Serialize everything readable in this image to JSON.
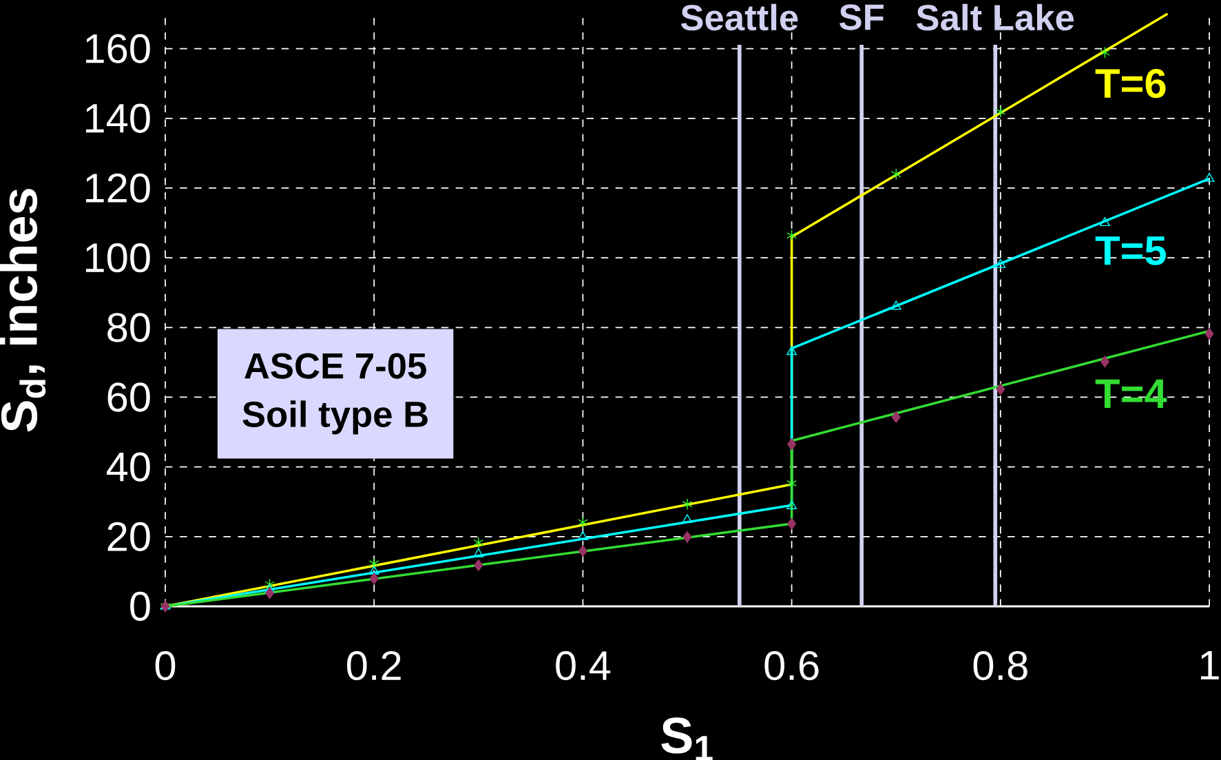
{
  "chart_data": {
    "type": "line",
    "xlabel": "S$_{1}$",
    "ylabel": "S$_{d}$, inches",
    "xlim": [
      0,
      1
    ],
    "ylim": [
      0,
      170
    ],
    "xticks": [
      0,
      0.2,
      0.4,
      0.6,
      0.8,
      1
    ],
    "yticks": [
      0,
      20,
      40,
      60,
      80,
      100,
      120,
      140,
      160
    ],
    "grid": true,
    "annotations": [
      "ASCE 7-05",
      "Soil type B"
    ],
    "ref_lines": [
      {
        "axis": "x",
        "value": 0.55,
        "label": "Seattle",
        "color": "#d0d0f0"
      },
      {
        "axis": "x",
        "value": 0.667,
        "label": "SF",
        "color": "#d0d0f0"
      },
      {
        "axis": "x",
        "value": 0.795,
        "label": "Salt Lake",
        "color": "#d0d0f0"
      }
    ],
    "series": [
      {
        "name": "T=6",
        "type": "line",
        "color": "#ffff00",
        "x": [
          0,
          0.6,
          0.6,
          0.96
        ],
        "values": [
          0,
          35,
          106,
          170
        ]
      },
      {
        "name": "T=5",
        "type": "line",
        "color": "#00ffff",
        "x": [
          0,
          0.6,
          0.6,
          1
        ],
        "values": [
          0,
          29,
          74,
          122.7
        ]
      },
      {
        "name": "T=4",
        "type": "line",
        "color": "#33dd33",
        "x": [
          0,
          0.6,
          0.6,
          1
        ],
        "values": [
          0,
          23.7,
          47.5,
          79
        ]
      },
      {
        "type": "scatter",
        "color": "#33ff33",
        "marker": "cross",
        "x": [
          0,
          0.1,
          0.2,
          0.3,
          0.4,
          0.5,
          0.6,
          0.6,
          0.7,
          0.8,
          0.9
        ],
        "values": [
          0,
          6.3,
          12.3,
          18.3,
          24.1,
          29.3,
          35.3,
          106.4,
          124,
          141.9,
          158.9
        ]
      },
      {
        "type": "scatter",
        "color": "#00ffff",
        "marker": "triangle",
        "x": [
          0,
          0.1,
          0.2,
          0.3,
          0.4,
          0.5,
          0.6,
          0.6,
          0.7,
          0.8,
          0.9,
          1
        ],
        "values": [
          0,
          4.7,
          10,
          15,
          19.9,
          24.8,
          28.8,
          73,
          86,
          98,
          110,
          122.7
        ]
      },
      {
        "type": "scatter",
        "color": "#993366",
        "marker": "diamond",
        "x": [
          0,
          0.1,
          0.2,
          0.3,
          0.4,
          0.5,
          0.6,
          0.6,
          0.7,
          0.8,
          0.9,
          1
        ],
        "values": [
          0,
          3.8,
          8,
          11.8,
          15.9,
          19.9,
          23.7,
          46.5,
          54.3,
          62.3,
          70.2,
          78.2
        ]
      }
    ]
  }
}
